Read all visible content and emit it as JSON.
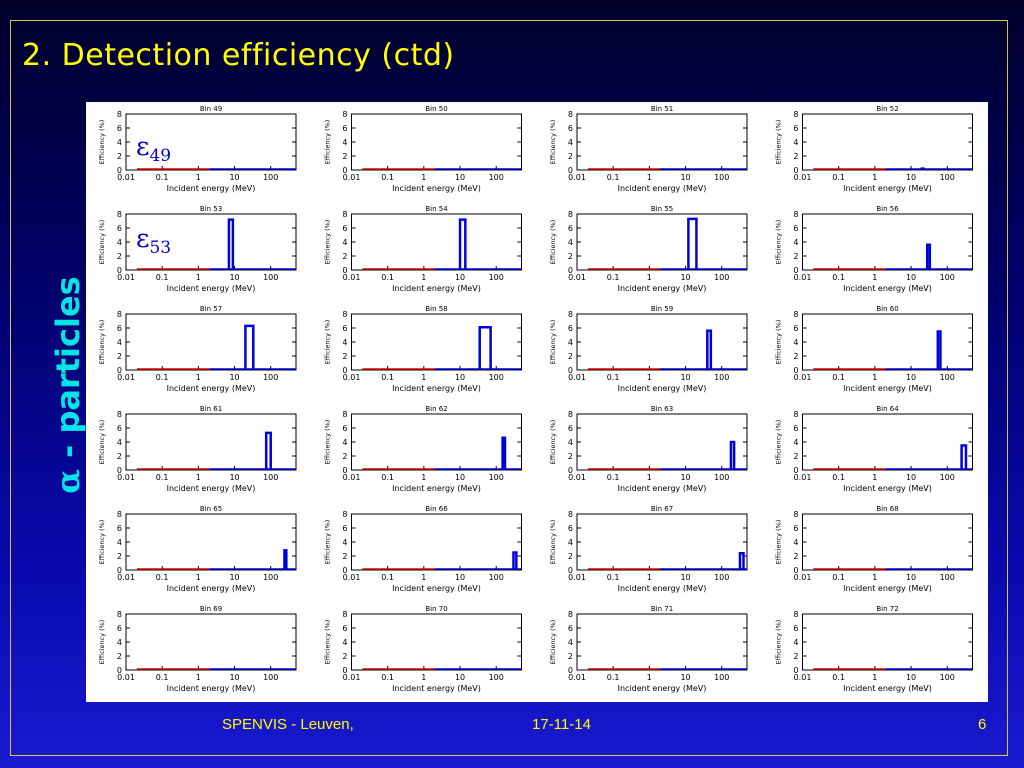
{
  "slide": {
    "title": "2.  Detection efficiency (ctd)",
    "side_label_symbol": "α",
    "side_label_text": " - particles",
    "footer_left": "SPENVIS - Leuven,",
    "footer_center": "17-11-14",
    "page_number": "6"
  },
  "annotations": {
    "eps49_symbol": "ε",
    "eps49_sub": "49",
    "eps53_symbol": "ε",
    "eps53_sub": "53"
  },
  "colors": {
    "title": "#ffff00",
    "side_label": "#00e5e5",
    "efficiency_line": "#0000dd",
    "baseline_red": "#dd0000",
    "epsilon": "#0000cc"
  },
  "chart_data": {
    "type": "line",
    "xlabel": "Incident energy (MeV)",
    "ylabel": "Efficiency (%)",
    "x_scale": "log",
    "xlim": [
      0.01,
      500
    ],
    "ylim": [
      0,
      8
    ],
    "x_tick_labels": [
      "0.01",
      "0.1",
      "1",
      "10",
      "100"
    ],
    "y_tick_labels": [
      "0",
      "2",
      "4",
      "6",
      "8"
    ],
    "grid": "off",
    "panels": [
      {
        "title": "Bin 49",
        "peak": null
      },
      {
        "title": "Bin 50",
        "peak": null
      },
      {
        "title": "Bin 51",
        "peak": null
      },
      {
        "title": "Bin 52",
        "peak": {
          "e_lo": 20,
          "e_hi": 22,
          "value": 0.2
        }
      },
      {
        "title": "Bin 53",
        "peak": {
          "e_lo": 7,
          "e_hi": 9,
          "value": 7.2
        }
      },
      {
        "title": "Bin 54",
        "peak": {
          "e_lo": 10,
          "e_hi": 14,
          "value": 7.2
        }
      },
      {
        "title": "Bin 55",
        "peak": {
          "e_lo": 12,
          "e_hi": 20,
          "value": 7.3
        }
      },
      {
        "title": "Bin 56",
        "peak": {
          "e_lo": 28,
          "e_hi": 33,
          "value": 3.6
        }
      },
      {
        "title": "Bin 57",
        "peak": {
          "e_lo": 20,
          "e_hi": 33,
          "value": 6.3
        }
      },
      {
        "title": "Bin 58",
        "peak": {
          "e_lo": 35,
          "e_hi": 70,
          "value": 6.1
        }
      },
      {
        "title": "Bin 59",
        "peak": {
          "e_lo": 40,
          "e_hi": 50,
          "value": 5.6
        }
      },
      {
        "title": "Bin 60",
        "peak": {
          "e_lo": 55,
          "e_hi": 65,
          "value": 5.5
        }
      },
      {
        "title": "Bin 61",
        "peak": {
          "e_lo": 75,
          "e_hi": 100,
          "value": 5.3
        }
      },
      {
        "title": "Bin 62",
        "peak": {
          "e_lo": 150,
          "e_hi": 175,
          "value": 4.6
        }
      },
      {
        "title": "Bin 63",
        "peak": {
          "e_lo": 180,
          "e_hi": 220,
          "value": 4.0
        }
      },
      {
        "title": "Bin 64",
        "peak": {
          "e_lo": 250,
          "e_hi": 330,
          "value": 3.5
        }
      },
      {
        "title": "Bin 65",
        "peak": {
          "e_lo": 240,
          "e_hi": 270,
          "value": 2.8
        }
      },
      {
        "title": "Bin 66",
        "peak": {
          "e_lo": 300,
          "e_hi": 360,
          "value": 2.5
        }
      },
      {
        "title": "Bin 67",
        "peak": {
          "e_lo": 320,
          "e_hi": 400,
          "value": 2.4
        }
      },
      {
        "title": "Bin 68",
        "peak": null
      },
      {
        "title": "Bin 69",
        "peak": null
      },
      {
        "title": "Bin 70",
        "peak": null
      },
      {
        "title": "Bin 71",
        "peak": null
      },
      {
        "title": "Bin 72",
        "peak": null
      }
    ]
  }
}
